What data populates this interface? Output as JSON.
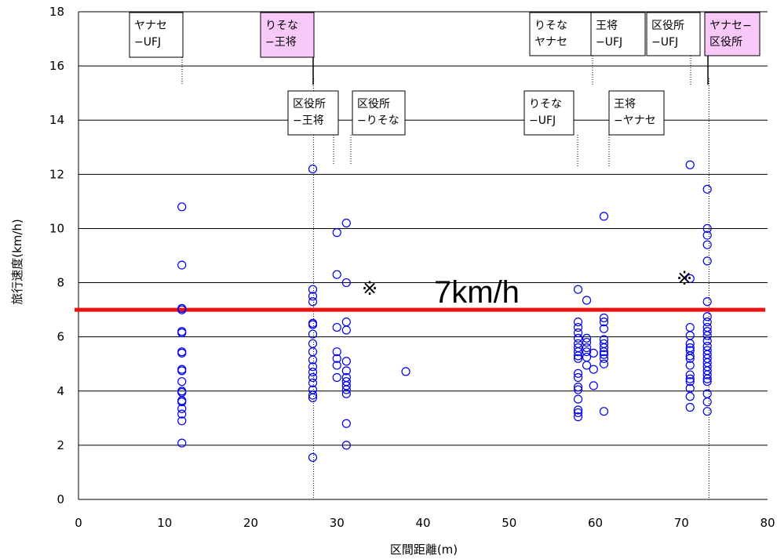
{
  "chart_data": {
    "type": "scatter",
    "xlabel": "区間距離(m)",
    "ylabel": "旅行速度(km/h)",
    "xlim": [
      0,
      80
    ],
    "ylim": [
      0,
      18
    ],
    "xticks": [
      "0",
      "10",
      "20",
      "30",
      "40",
      "50",
      "60",
      "70",
      "80"
    ],
    "yticks": [
      "0",
      "2",
      "4",
      "6",
      "8",
      "10",
      "12",
      "14",
      "16",
      "18"
    ],
    "grid": "horizontal",
    "marker_color": "#0000ee",
    "threshold": {
      "value": 7,
      "label": "7km/h",
      "color": "#ee1111"
    },
    "notes": [
      "※",
      "※"
    ],
    "section_labels": [
      {
        "text": [
          "ヤナセ",
          "−UFJ"
        ],
        "x": 12,
        "highlight": false
      },
      {
        "text": [
          "りそな",
          "−王将"
        ],
        "x": 27.3,
        "highlight": true
      },
      {
        "text": [
          "区役所",
          "−王将"
        ],
        "x": 27.3,
        "highlight": false
      },
      {
        "text": [
          "区役所",
          "−りそな"
        ],
        "x": 31.5,
        "highlight": false
      },
      {
        "text": [
          "りそな",
          "ヤナセ"
        ],
        "x": 57.8,
        "highlight": false
      },
      {
        "text": [
          "りそな",
          "−UFJ"
        ],
        "x": 57.8,
        "highlight": false
      },
      {
        "text": [
          "王将",
          "−UFJ"
        ],
        "x": 59.5,
        "highlight": false
      },
      {
        "text": [
          "王将",
          "−ヤナセ"
        ],
        "x": 61.3,
        "highlight": false
      },
      {
        "text": [
          "区役所",
          "−UFJ"
        ],
        "x": 71,
        "highlight": false
      },
      {
        "text": [
          "ヤナセ−",
          "区役所"
        ],
        "x": 73.2,
        "highlight": true
      }
    ],
    "points": [
      [
        12,
        10.8
      ],
      [
        12,
        8.65
      ],
      [
        12,
        7.05
      ],
      [
        12,
        7.0
      ],
      [
        12,
        6.2
      ],
      [
        12,
        6.15
      ],
      [
        12,
        5.45
      ],
      [
        12,
        5.4
      ],
      [
        12,
        4.8
      ],
      [
        12,
        4.75
      ],
      [
        12,
        4.35
      ],
      [
        12,
        4.0
      ],
      [
        12,
        3.95
      ],
      [
        12,
        3.65
      ],
      [
        12,
        3.6
      ],
      [
        12,
        3.35
      ],
      [
        12,
        3.15
      ],
      [
        12,
        2.9
      ],
      [
        12,
        2.08
      ],
      [
        27.2,
        12.2
      ],
      [
        27.2,
        7.75
      ],
      [
        27.2,
        7.5
      ],
      [
        27.2,
        7.3
      ],
      [
        27.2,
        6.5
      ],
      [
        27.2,
        6.45
      ],
      [
        27.2,
        6.1
      ],
      [
        27.2,
        5.75
      ],
      [
        27.2,
        5.45
      ],
      [
        27.2,
        5.15
      ],
      [
        27.2,
        4.9
      ],
      [
        27.2,
        4.7
      ],
      [
        27.2,
        4.5
      ],
      [
        27.2,
        4.3
      ],
      [
        27.2,
        4.05
      ],
      [
        27.2,
        3.85
      ],
      [
        27.2,
        3.75
      ],
      [
        27.2,
        1.55
      ],
      [
        30,
        9.85
      ],
      [
        30,
        8.3
      ],
      [
        30,
        6.35
      ],
      [
        30,
        5.45
      ],
      [
        30,
        5.2
      ],
      [
        30,
        4.95
      ],
      [
        30,
        4.5
      ],
      [
        31.1,
        10.2
      ],
      [
        31.1,
        8.0
      ],
      [
        31.1,
        6.55
      ],
      [
        31.1,
        6.25
      ],
      [
        31.1,
        5.1
      ],
      [
        31.1,
        4.75
      ],
      [
        31.1,
        4.5
      ],
      [
        31.1,
        4.35
      ],
      [
        31.1,
        4.2
      ],
      [
        31.1,
        4.05
      ],
      [
        31.1,
        3.9
      ],
      [
        31.1,
        2.8
      ],
      [
        31.1,
        2.0
      ],
      [
        38,
        4.72
      ],
      [
        58,
        7.75
      ],
      [
        58,
        6.55
      ],
      [
        58,
        6.35
      ],
      [
        58,
        6.15
      ],
      [
        58,
        5.95
      ],
      [
        58,
        5.75
      ],
      [
        58,
        5.6
      ],
      [
        58,
        5.45
      ],
      [
        58,
        5.3
      ],
      [
        58,
        5.2
      ],
      [
        58,
        4.65
      ],
      [
        58,
        4.5
      ],
      [
        58,
        4.15
      ],
      [
        58,
        4.05
      ],
      [
        58,
        3.7
      ],
      [
        58,
        3.3
      ],
      [
        58,
        3.2
      ],
      [
        58,
        3.05
      ],
      [
        59,
        7.35
      ],
      [
        59,
        5.95
      ],
      [
        59,
        5.8
      ],
      [
        59,
        5.6
      ],
      [
        59,
        5.45
      ],
      [
        59,
        5.25
      ],
      [
        59,
        4.95
      ],
      [
        59.8,
        5.4
      ],
      [
        59.8,
        4.8
      ],
      [
        59.8,
        4.2
      ],
      [
        61,
        10.45
      ],
      [
        61,
        6.7
      ],
      [
        61,
        6.55
      ],
      [
        61,
        6.3
      ],
      [
        61,
        5.9
      ],
      [
        61,
        5.75
      ],
      [
        61,
        5.6
      ],
      [
        61,
        5.45
      ],
      [
        61,
        5.35
      ],
      [
        61,
        5.2
      ],
      [
        61,
        5.0
      ],
      [
        61,
        3.25
      ],
      [
        71,
        12.35
      ],
      [
        71,
        8.15
      ],
      [
        71,
        6.35
      ],
      [
        71,
        6.05
      ],
      [
        71,
        5.75
      ],
      [
        71,
        5.6
      ],
      [
        71,
        5.5
      ],
      [
        71,
        5.3
      ],
      [
        71,
        5.2
      ],
      [
        71,
        4.95
      ],
      [
        71,
        4.6
      ],
      [
        71,
        4.45
      ],
      [
        71,
        4.35
      ],
      [
        71,
        4.1
      ],
      [
        71,
        3.8
      ],
      [
        71,
        3.4
      ],
      [
        73,
        11.45
      ],
      [
        73,
        10.0
      ],
      [
        73,
        9.75
      ],
      [
        73,
        9.4
      ],
      [
        73,
        8.8
      ],
      [
        73,
        7.3
      ],
      [
        73,
        6.75
      ],
      [
        73,
        6.55
      ],
      [
        73,
        6.35
      ],
      [
        73,
        6.2
      ],
      [
        73,
        6.05
      ],
      [
        73,
        5.85
      ],
      [
        73,
        5.65
      ],
      [
        73,
        5.5
      ],
      [
        73,
        5.35
      ],
      [
        73,
        5.2
      ],
      [
        73,
        5.05
      ],
      [
        73,
        4.9
      ],
      [
        73,
        4.75
      ],
      [
        73,
        4.6
      ],
      [
        73,
        4.45
      ],
      [
        73,
        4.35
      ],
      [
        73,
        3.9
      ],
      [
        73,
        3.6
      ],
      [
        73,
        3.25
      ]
    ]
  }
}
